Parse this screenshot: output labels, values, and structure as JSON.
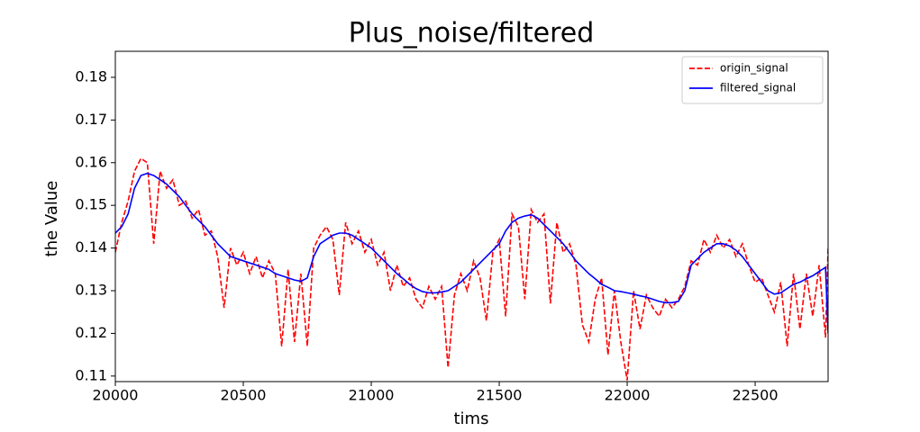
{
  "chart_data": {
    "type": "line",
    "title": "Plus_noise/filtered",
    "xlabel": "tims",
    "ylabel": "the Value",
    "x": [
      20000,
      20025,
      20050,
      20075,
      20100,
      20125,
      20150,
      20175,
      20200,
      20225,
      20250,
      20275,
      20300,
      20325,
      20350,
      20375,
      20400,
      20425,
      20450,
      20475,
      20500,
      20525,
      20550,
      20575,
      20600,
      20625,
      20650,
      20675,
      20700,
      20725,
      20750,
      20775,
      20800,
      20825,
      20850,
      20875,
      20900,
      20925,
      20950,
      20975,
      21000,
      21025,
      21050,
      21075,
      21100,
      21125,
      21150,
      21175,
      21200,
      21225,
      21250,
      21275,
      21300,
      21325,
      21350,
      21375,
      21400,
      21425,
      21450,
      21475,
      21500,
      21525,
      21550,
      21575,
      21600,
      21625,
      21650,
      21675,
      21700,
      21725,
      21750,
      21775,
      21800,
      21825,
      21850,
      21875,
      21900,
      21925,
      21950,
      21975,
      22000,
      22025,
      22050,
      22075,
      22100,
      22125,
      22150,
      22175,
      22200,
      22225,
      22250,
      22275,
      22300,
      22325,
      22350,
      22375,
      22400,
      22425,
      22450,
      22475,
      22500,
      22525,
      22550,
      22575,
      22600,
      22625,
      22650,
      22675,
      22700,
      22725,
      22750,
      22775,
      22785
    ],
    "series": [
      {
        "name": "origin_signal",
        "color": "#ff0000",
        "dash": true,
        "values": [
          0.139,
          0.146,
          0.151,
          0.158,
          0.161,
          0.16,
          0.141,
          0.158,
          0.154,
          0.156,
          0.15,
          0.151,
          0.147,
          0.149,
          0.143,
          0.144,
          0.138,
          0.126,
          0.14,
          0.136,
          0.139,
          0.134,
          0.138,
          0.133,
          0.137,
          0.134,
          0.117,
          0.135,
          0.118,
          0.134,
          0.117,
          0.14,
          0.143,
          0.145,
          0.142,
          0.129,
          0.146,
          0.141,
          0.144,
          0.139,
          0.142,
          0.136,
          0.139,
          0.13,
          0.136,
          0.131,
          0.133,
          0.128,
          0.126,
          0.131,
          0.128,
          0.131,
          0.112,
          0.129,
          0.134,
          0.13,
          0.137,
          0.133,
          0.123,
          0.139,
          0.142,
          0.124,
          0.148,
          0.145,
          0.128,
          0.149,
          0.146,
          0.148,
          0.127,
          0.146,
          0.139,
          0.141,
          0.136,
          0.122,
          0.118,
          0.128,
          0.133,
          0.115,
          0.13,
          0.118,
          0.109,
          0.13,
          0.121,
          0.129,
          0.126,
          0.124,
          0.128,
          0.126,
          0.128,
          0.131,
          0.137,
          0.136,
          0.142,
          0.139,
          0.143,
          0.14,
          0.142,
          0.138,
          0.141,
          0.136,
          0.132,
          0.133,
          0.129,
          0.125,
          0.132,
          0.117,
          0.134,
          0.121,
          0.134,
          0.124,
          0.136,
          0.119,
          0.14
        ]
      },
      {
        "name": "filtered_signal",
        "color": "#0000ff",
        "dash": false,
        "values": [
          0.1435,
          0.145,
          0.148,
          0.154,
          0.157,
          0.1575,
          0.157,
          0.156,
          0.155,
          0.1535,
          0.152,
          0.15,
          0.148,
          0.1465,
          0.145,
          0.143,
          0.141,
          0.1395,
          0.138,
          0.1375,
          0.137,
          0.1365,
          0.136,
          0.1355,
          0.135,
          0.134,
          0.1335,
          0.133,
          0.1325,
          0.1322,
          0.133,
          0.138,
          0.141,
          0.142,
          0.143,
          0.1435,
          0.1435,
          0.143,
          0.142,
          0.141,
          0.14,
          0.1385,
          0.137,
          0.1355,
          0.134,
          0.1328,
          0.1315,
          0.1305,
          0.1298,
          0.1295,
          0.1295,
          0.1297,
          0.13,
          0.131,
          0.132,
          0.1335,
          0.135,
          0.1365,
          0.138,
          0.1395,
          0.141,
          0.144,
          0.146,
          0.147,
          0.1475,
          0.1478,
          0.147,
          0.1455,
          0.144,
          0.1425,
          0.141,
          0.139,
          0.137,
          0.1355,
          0.134,
          0.1328,
          0.1315,
          0.1308,
          0.13,
          0.1298,
          0.1295,
          0.1292,
          0.1288,
          0.1285,
          0.128,
          0.1275,
          0.1272,
          0.1272,
          0.1275,
          0.13,
          0.136,
          0.1375,
          0.139,
          0.14,
          0.141,
          0.141,
          0.1405,
          0.1395,
          0.138,
          0.136,
          0.134,
          0.132,
          0.13,
          0.1292,
          0.1295,
          0.1305,
          0.1315,
          0.132,
          0.1328,
          0.1335,
          0.1345,
          0.1355,
          0.12
        ]
      }
    ],
    "xlim": [
      20000,
      22785
    ],
    "xticks": [
      20000,
      20500,
      21000,
      21500,
      22000,
      22500
    ],
    "ylim": [
      0.1087,
      0.1861
    ],
    "yticks": [
      0.11,
      0.12,
      0.13,
      0.14,
      0.15,
      0.16,
      0.17,
      0.18
    ],
    "legend": "upper right"
  }
}
